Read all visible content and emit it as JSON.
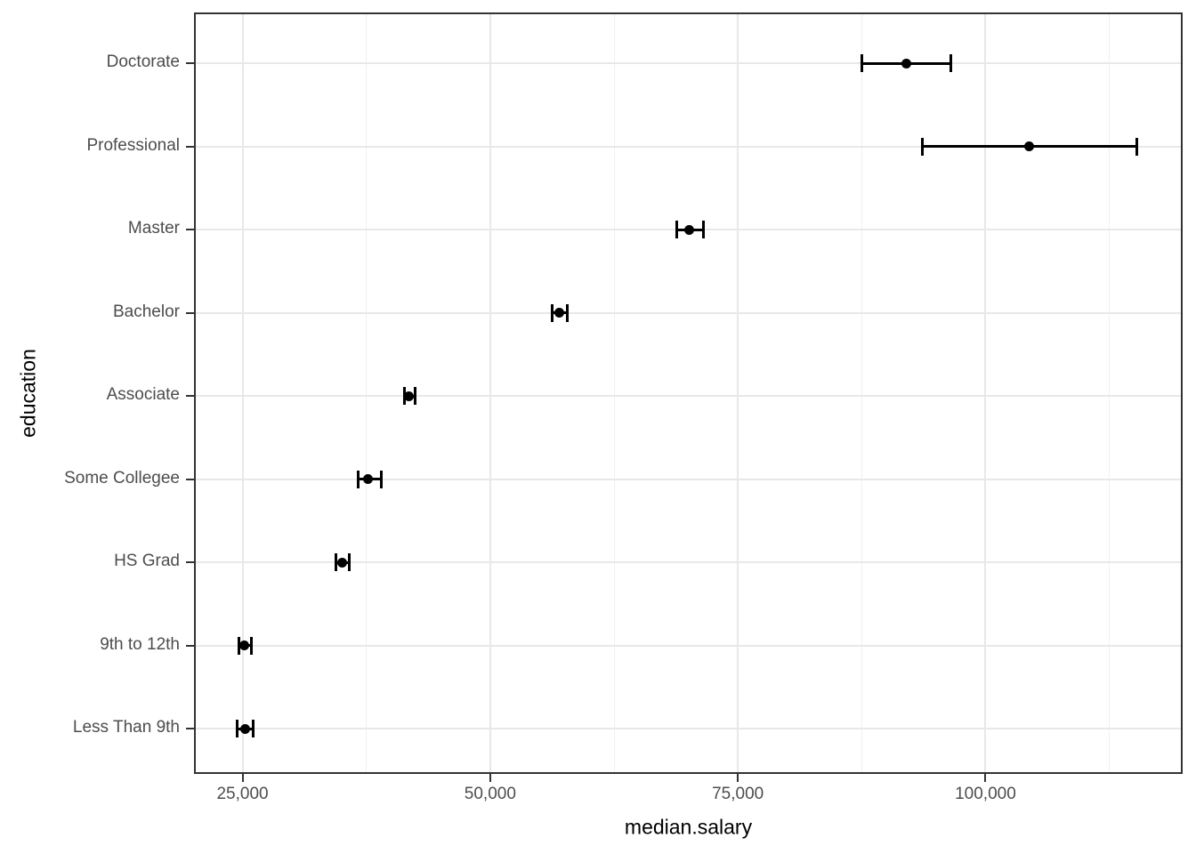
{
  "colors": {
    "background": "#ffffff",
    "panel_background": "#ffffff",
    "panel_border": "#333333",
    "grid_major": "#e8e8e8",
    "grid_minor": "#f0f0f0",
    "tick_mark": "#333333",
    "tick_label": "#4d4d4d",
    "axis_title": "#000000",
    "data_color": "#000000"
  },
  "chart_data": {
    "type": "scatter",
    "subtype": "pointrange-horizontal-errorbar",
    "title": "",
    "xlabel": "median.salary",
    "ylabel": "education",
    "legend": "none",
    "grid": "major-and-minor-vertical, major-horizontal",
    "categories": [
      "Doctorate",
      "Professional",
      "Master",
      "Bachelor",
      "Associate",
      "Some Collegee",
      "HS Grad",
      "9th to 12th",
      "Less Than 9th"
    ],
    "series": [
      {
        "name": "median.salary",
        "values": [
          92000,
          104400,
          70100,
          57000,
          41800,
          37700,
          35100,
          25200,
          25300
        ],
        "lower": [
          87500,
          93600,
          68800,
          56300,
          41300,
          36700,
          34400,
          24600,
          24500
        ],
        "upper": [
          96500,
          115300,
          71500,
          57800,
          42400,
          39000,
          35800,
          25900,
          26100
        ]
      }
    ],
    "xlim": [
      20100,
      119900
    ],
    "x_major_ticks": [
      25000,
      50000,
      75000,
      100000
    ],
    "x_tick_labels": [
      "25,000",
      "50,000",
      "75,000",
      "100,000"
    ],
    "x_minor_ticks": [
      37500,
      62500,
      87500,
      112500
    ]
  }
}
